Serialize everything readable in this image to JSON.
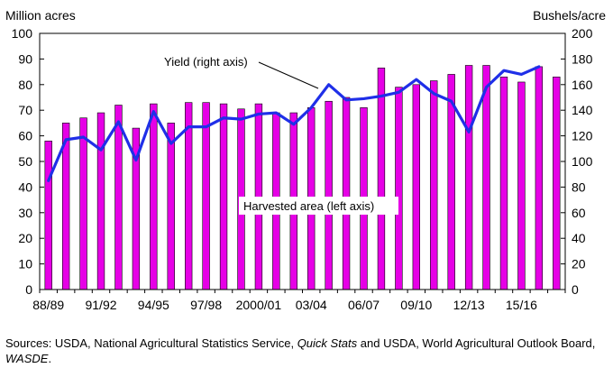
{
  "chart_data": {
    "type": "bar+line",
    "y_left_label": "Million acres",
    "y_right_label": "Bushels/acre",
    "y_left_range": [
      0,
      100
    ],
    "y_right_range": [
      0,
      200
    ],
    "y_left_ticks": [
      "0",
      "10",
      "20",
      "30",
      "40",
      "50",
      "60",
      "70",
      "80",
      "90",
      "100"
    ],
    "y_right_ticks": [
      "0",
      "20",
      "40",
      "60",
      "80",
      "100",
      "120",
      "140",
      "160",
      "180",
      "200"
    ],
    "x_tick_labels": [
      "88/89",
      "91/92",
      "94/95",
      "97/98",
      "2000/01",
      "03/04",
      "06/07",
      "09/10",
      "12/13",
      "15/16"
    ],
    "x_tick_indices": [
      0,
      3,
      6,
      9,
      12,
      15,
      18,
      21,
      24,
      27
    ],
    "bar_color": "#e600e6",
    "line_color": "#1f2fe8",
    "grid": false,
    "bars": {
      "name": "Harvested area (left axis)",
      "axis": "left",
      "values": [
        58,
        65,
        67,
        69,
        72,
        63,
        72.5,
        65,
        73,
        73,
        72.5,
        70.5,
        72.5,
        69,
        69,
        71,
        73.5,
        75,
        71,
        86.5,
        79,
        80,
        81.5,
        84,
        87.5,
        87.5,
        83,
        81,
        87,
        83
      ]
    },
    "line": {
      "name": "Yield (right axis)",
      "axis": "right",
      "values": [
        85,
        117,
        119,
        109,
        131,
        101,
        139,
        114,
        127,
        127,
        134,
        133,
        137,
        138,
        129,
        142,
        160,
        148,
        149,
        151,
        154,
        164,
        153,
        147,
        123,
        158,
        171,
        168,
        174
      ]
    },
    "annotations": [
      "Yield (right axis)",
      "Harvested area (left axis)"
    ]
  },
  "source_note": {
    "prefix": "Sources: USDA, National Agricultural Statistics Service, ",
    "quick_stats": "Quick Stats",
    "middle": " and USDA, World Agricultural Outlook Board, ",
    "wasde": "WASDE",
    "suffix": "."
  }
}
